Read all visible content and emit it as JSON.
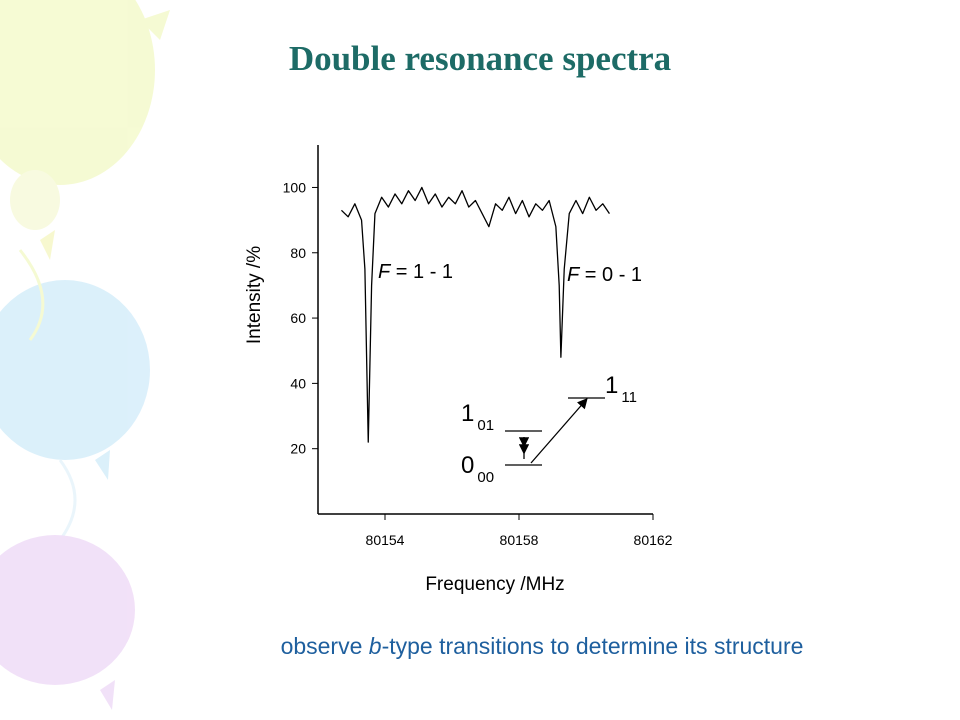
{
  "chart_data": {
    "type": "line",
    "title": "Double resonance spectra",
    "x_label": "Frequency /MHz",
    "y_label": "Intensity /%",
    "xlim": [
      80152,
      80162
    ],
    "ylim": [
      0,
      113
    ],
    "xticks": [
      80154,
      80158,
      80162
    ],
    "yticks": [
      20,
      40,
      60,
      80,
      100
    ],
    "color": "#000000",
    "x": [
      80152.7,
      80152.9,
      80153.1,
      80153.3,
      80153.4,
      80153.5,
      80153.6,
      80153.7,
      80153.9,
      80154.1,
      80154.3,
      80154.5,
      80154.7,
      80154.9,
      80155.1,
      80155.3,
      80155.5,
      80155.7,
      80155.9,
      80156.1,
      80156.3,
      80156.5,
      80156.7,
      80156.9,
      80157.1,
      80157.3,
      80157.5,
      80157.7,
      80157.9,
      80158.1,
      80158.3,
      80158.5,
      80158.7,
      80158.9,
      80159.1,
      80159.2,
      80159.25,
      80159.35,
      80159.5,
      80159.7,
      80159.9,
      80160.1,
      80160.3,
      80160.5,
      80160.7
    ],
    "values": [
      93,
      91,
      95,
      90,
      75,
      22,
      70,
      92,
      97,
      94,
      98,
      95,
      99,
      96,
      100,
      95,
      98,
      94,
      97,
      95,
      99,
      94,
      96,
      92,
      88,
      95,
      93,
      97,
      92,
      96,
      91,
      95,
      93,
      96,
      88,
      70,
      48,
      75,
      92,
      96,
      92,
      97,
      93,
      95,
      92
    ],
    "annotations": [
      {
        "italic": "F",
        "text": " = 1 - 1"
      },
      {
        "italic": "F",
        "text": " = 0 - 1"
      }
    ],
    "levels": [
      {
        "text": "1",
        "sub": "11"
      },
      {
        "text": "1",
        "sub": "01"
      },
      {
        "text": "0",
        "sub": "00"
      }
    ],
    "caption": [
      "observe ",
      "b",
      "-type transitions to determine its structure"
    ]
  }
}
